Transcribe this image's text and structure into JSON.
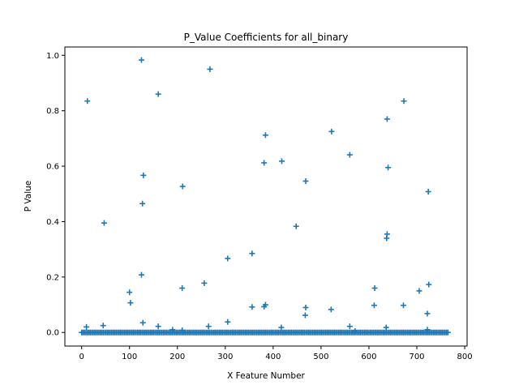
{
  "chart_data": {
    "type": "scatter",
    "title": "P_Value Coefficients for all_binary",
    "xlabel": "X Feature Number",
    "ylabel": "P Value",
    "xlim": [
      -35,
      805
    ],
    "ylim": [
      -0.049,
      1.03
    ],
    "xticks": [
      0,
      100,
      200,
      300,
      400,
      500,
      600,
      700,
      800
    ],
    "yticks": [
      0.0,
      0.2,
      0.4,
      0.6,
      0.8,
      1.0
    ],
    "xtick_labels": [
      "0",
      "100",
      "200",
      "300",
      "400",
      "500",
      "600",
      "700",
      "800"
    ],
    "ytick_labels": [
      "0.0",
      "0.2",
      "0.4",
      "0.6",
      "0.8",
      "1.0"
    ],
    "grid": false,
    "marker": "+",
    "marker_color": "#1f77b4",
    "baseline": {
      "x_start": 0,
      "x_end": 767,
      "step": 3,
      "y": 0.0
    },
    "points": [
      [
        12,
        0.835
      ],
      [
        10,
        0.02
      ],
      [
        47,
        0.395
      ],
      [
        45,
        0.025
      ],
      [
        100,
        0.145
      ],
      [
        102,
        0.107
      ],
      [
        125,
        0.983
      ],
      [
        127,
        0.465
      ],
      [
        129,
        0.567
      ],
      [
        125,
        0.208
      ],
      [
        128,
        0.035
      ],
      [
        160,
        0.86
      ],
      [
        160,
        0.022
      ],
      [
        211,
        0.527
      ],
      [
        210,
        0.16
      ],
      [
        190,
        0.01
      ],
      [
        210,
        0.008
      ],
      [
        256,
        0.178
      ],
      [
        268,
        0.95
      ],
      [
        265,
        0.022
      ],
      [
        305,
        0.267
      ],
      [
        305,
        0.038
      ],
      [
        356,
        0.285
      ],
      [
        356,
        0.092
      ],
      [
        381,
        0.612
      ],
      [
        384,
        0.712
      ],
      [
        381,
        0.093
      ],
      [
        384,
        0.1
      ],
      [
        418,
        0.618
      ],
      [
        417,
        0.018
      ],
      [
        448,
        0.383
      ],
      [
        468,
        0.546
      ],
      [
        467,
        0.062
      ],
      [
        468,
        0.09
      ],
      [
        522,
        0.725
      ],
      [
        521,
        0.083
      ],
      [
        560,
        0.641
      ],
      [
        560,
        0.022
      ],
      [
        571,
        0.005
      ],
      [
        612,
        0.16
      ],
      [
        611,
        0.098
      ],
      [
        638,
        0.77
      ],
      [
        637,
        0.34
      ],
      [
        638,
        0.355
      ],
      [
        640,
        0.595
      ],
      [
        636,
        0.018
      ],
      [
        673,
        0.835
      ],
      [
        672,
        0.098
      ],
      [
        705,
        0.15
      ],
      [
        724,
        0.508
      ],
      [
        725,
        0.173
      ],
      [
        722,
        0.068
      ],
      [
        722,
        0.01
      ]
    ]
  }
}
